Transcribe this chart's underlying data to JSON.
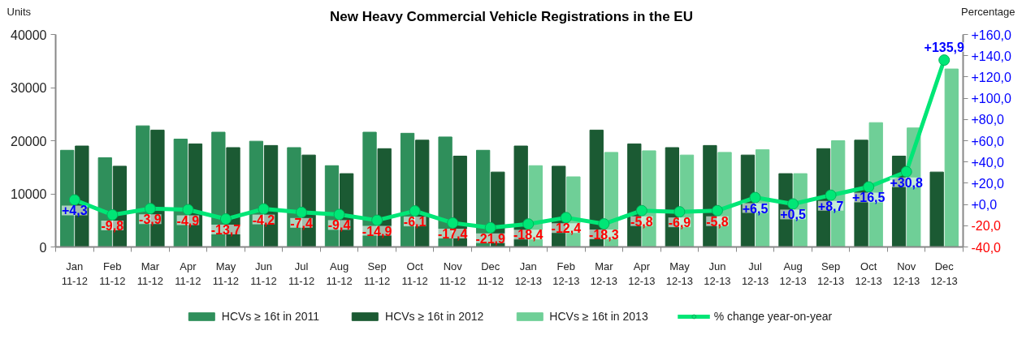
{
  "chart_data": {
    "type": "bar",
    "title": "New Heavy Commercial Vehicle Registrations in the EU",
    "ylabel": "Units",
    "y2label": "Percentage",
    "categories": [
      "Jan\n11-12",
      "Feb\n11-12",
      "Mar\n11-12",
      "Apr\n11-12",
      "May\n11-12",
      "Jun\n11-12",
      "Jul\n11-12",
      "Aug\n11-12",
      "Sep\n11-12",
      "Oct\n11-12",
      "Nov\n11-12",
      "Dec\n11-12",
      "Jan\n12-13",
      "Feb\n12-13",
      "Mar\n12-13",
      "Apr\n12-13",
      "May\n12-13",
      "Jun\n12-13",
      "Jul\n12-13",
      "Aug\n12-13",
      "Sep\n12-13",
      "Oct\n12-13",
      "Nov\n12-13",
      "Dec\n12-13"
    ],
    "series": [
      {
        "name": "HCVs ≥ 16t in 2011",
        "color": "#2f8f5b",
        "values": [
          18200,
          16800,
          22800,
          20300,
          21600,
          19900,
          18700,
          15300,
          21600,
          21400,
          20700,
          18200,
          null,
          null,
          null,
          null,
          null,
          null,
          null,
          null,
          null,
          null,
          null,
          null
        ]
      },
      {
        "name": "HCVs ≥ 16t in 2012",
        "color": "#1b5a33",
        "values": [
          19000,
          15200,
          22000,
          19400,
          18700,
          19100,
          17300,
          13800,
          18500,
          20100,
          17100,
          14100,
          19000,
          15200,
          22000,
          19400,
          18700,
          19100,
          17300,
          13800,
          18500,
          20100,
          17100,
          14100
        ]
      },
      {
        "name": "HCVs ≥ 16t in 2013",
        "color": "#6fcf97",
        "values": [
          null,
          null,
          null,
          null,
          null,
          null,
          null,
          null,
          null,
          null,
          null,
          null,
          15300,
          13200,
          17800,
          18100,
          17300,
          17800,
          18300,
          13800,
          20000,
          23400,
          22400,
          33500
        ]
      },
      {
        "name": "% change year-on-year",
        "type": "line",
        "axis": "y2",
        "color": "#00e676",
        "values": [
          4.3,
          -9.8,
          -3.9,
          -4.9,
          -13.7,
          -4.2,
          -7.4,
          -9.4,
          -14.9,
          -6.1,
          -17.4,
          -21.9,
          -18.4,
          -12.4,
          -18.3,
          -5.8,
          -6.9,
          -5.8,
          6.5,
          0.5,
          8.7,
          16.5,
          30.8,
          135.9
        ],
        "value_labels": [
          "+4,3",
          "-9,8",
          "-3,9",
          "-4,9",
          "-13,7",
          "-4,2",
          "-7,4",
          "-9,4",
          "-14,9",
          "-6,1",
          "-17,4",
          "-21,9",
          "-18,4",
          "-12,4",
          "-18,3",
          "-5,8",
          "-6,9",
          "-5,8",
          "+6,5",
          "+0,5",
          "+8,7",
          "+16,5",
          "+30,8",
          "+135,9"
        ]
      }
    ],
    "ylim": [
      0,
      40000
    ],
    "yticks": [
      0,
      10000,
      20000,
      30000,
      40000
    ],
    "y2lim": [
      -40,
      160
    ],
    "y2ticks": [
      {
        "value": -40,
        "label": "-40,0"
      },
      {
        "value": -20,
        "label": "-20,0"
      },
      {
        "value": 0,
        "label": "+0,0"
      },
      {
        "value": 20,
        "label": "+20,0"
      },
      {
        "value": 40,
        "label": "+40,0"
      },
      {
        "value": 60,
        "label": "+60,0"
      },
      {
        "value": 80,
        "label": "+80,0"
      },
      {
        "value": 100,
        "label": "+100,0"
      },
      {
        "value": 120,
        "label": "+120,0"
      },
      {
        "value": 140,
        "label": "+140,0"
      },
      {
        "value": 160,
        "label": "+160,0"
      }
    ],
    "grid": false,
    "legend": "bottom",
    "marker": "circle",
    "line_style": "solid"
  }
}
